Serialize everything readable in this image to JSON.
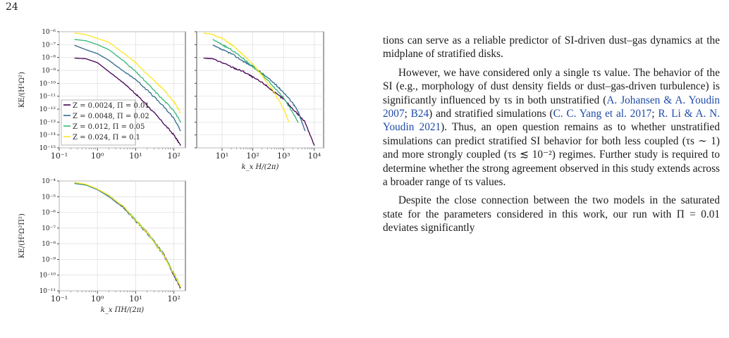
{
  "page_number": "24",
  "chart_data": [
    {
      "type": "line",
      "panel": "top-left",
      "xscale": "log",
      "yscale": "log",
      "xlim": [
        0.1,
        200
      ],
      "ylim": [
        1e-15,
        1e-06
      ],
      "xticks": [
        "10⁻¹",
        "10⁰",
        "10¹",
        "10²"
      ],
      "yticks": [
        "10⁻¹⁵",
        "10⁻¹⁴",
        "10⁻¹³",
        "10⁻¹²",
        "10⁻¹¹",
        "10⁻¹⁰",
        "10⁻⁹",
        "10⁻⁸",
        "10⁻⁷",
        "10⁻⁶"
      ],
      "ylabel": "KE/(H²Ω²)",
      "grid": true,
      "legend": "center-left",
      "series": [
        {
          "name": "Z = 0.0024, Π = 0.01",
          "color": "#440154",
          "x": [
            0.25,
            0.5,
            1,
            2,
            5,
            10,
            20,
            50,
            100,
            150
          ],
          "y": [
            9e-09,
            8e-09,
            4e-09,
            8e-10,
            1e-10,
            1.5e-11,
            2e-12,
            1e-13,
            1e-14,
            1.5e-15
          ]
        },
        {
          "name": "Z = 0.0048, Π = 0.02",
          "color": "#31688e",
          "x": [
            0.25,
            0.5,
            1,
            2,
            5,
            10,
            20,
            50,
            100,
            150
          ],
          "y": [
            9e-08,
            4e-08,
            2e-08,
            6e-09,
            8e-10,
            2e-10,
            3e-11,
            2e-12,
            2e-13,
            2e-14
          ]
        },
        {
          "name": "Z = 0.012, Π = 0.05",
          "color": "#35b779",
          "x": [
            0.25,
            0.5,
            1,
            2,
            5,
            10,
            20,
            50,
            100,
            150
          ],
          "y": [
            2.5e-07,
            2e-07,
            1e-07,
            4e-08,
            5e-09,
            8e-10,
            1e-10,
            6e-12,
            8e-13,
            9e-14
          ]
        },
        {
          "name": "Z = 0.024, Π = 0.1",
          "color": "#fde725",
          "x": [
            0.25,
            0.5,
            1,
            2,
            5,
            10,
            20,
            50,
            100,
            150
          ],
          "y": [
            8e-07,
            6e-07,
            3e-07,
            1.5e-07,
            2e-08,
            4e-09,
            5e-10,
            4e-11,
            4e-12,
            5e-13
          ]
        }
      ]
    },
    {
      "type": "line",
      "panel": "top-right",
      "xscale": "log",
      "yscale": "log",
      "xlim": [
        1.5,
        20000
      ],
      "ylim": [
        1e-15,
        1e-06
      ],
      "xticks": [
        "10¹",
        "10²",
        "10³",
        "10⁴"
      ],
      "xlabel": "k_x H/(2π)",
      "grid": true,
      "series": [
        {
          "name": "Z = 0.0024, Π = 0.01",
          "color": "#440154",
          "x": [
            2.5,
            5,
            10,
            25,
            50,
            100,
            250,
            500,
            1000,
            2500,
            5000,
            10000
          ],
          "y": [
            9e-09,
            8e-09,
            4e-09,
            1.5e-09,
            8e-10,
            3e-10,
            8e-11,
            2e-11,
            6e-12,
            6e-13,
            1e-13,
            1.5e-15
          ]
        },
        {
          "name": "Z = 0.0048, Π = 0.02",
          "color": "#31688e",
          "x": [
            5,
            10,
            20,
            50,
            100,
            200,
            500,
            1000,
            2000,
            3000,
            5000
          ],
          "y": [
            9e-08,
            4e-08,
            2e-08,
            5e-09,
            2e-09,
            6e-10,
            1e-10,
            2e-11,
            3e-12,
            6e-13,
            2e-14
          ]
        },
        {
          "name": "Z = 0.012, Π = 0.05",
          "color": "#35b779",
          "x": [
            5,
            10,
            20,
            50,
            100,
            200,
            500,
            1000,
            2000,
            3000
          ],
          "y": [
            2.5e-07,
            1e-07,
            4e-08,
            8e-09,
            2e-09,
            5e-10,
            5e-11,
            8e-12,
            5e-13,
            9e-14
          ]
        },
        {
          "name": "Z = 0.024, Π = 0.1",
          "color": "#fde725",
          "x": [
            2.5,
            5,
            10,
            20,
            50,
            100,
            200,
            500,
            1000,
            1500
          ],
          "y": [
            8e-07,
            6e-07,
            3e-07,
            1e-07,
            1.5e-08,
            3e-09,
            4e-10,
            2e-11,
            1e-12,
            1e-13
          ]
        }
      ]
    },
    {
      "type": "line",
      "panel": "bottom-left",
      "xscale": "log",
      "yscale": "log",
      "xlim": [
        0.1,
        200
      ],
      "ylim": [
        1e-11,
        0.0001
      ],
      "xticks": [
        "10⁻¹",
        "10⁰",
        "10¹",
        "10²"
      ],
      "yticks": [
        "10⁻¹¹",
        "10⁻¹⁰",
        "10⁻⁹",
        "10⁻⁸",
        "10⁻⁷",
        "10⁻⁶",
        "10⁻⁵",
        "10⁻⁴"
      ],
      "xlabel": "k_x ΠH/(2π)",
      "ylabel": "KE/(H²Ω²Π²)",
      "grid": true,
      "series": [
        {
          "name": "Z = 0.0024, Π = 0.01",
          "color": "#440154",
          "x": [
            0.25,
            0.5,
            1,
            2,
            5,
            10,
            20,
            50,
            100,
            150
          ],
          "y": [
            8e-05,
            6e-05,
            3e-05,
            1.2e-05,
            2e-06,
            3e-07,
            5e-08,
            3e-09,
            1e-10,
            1.5e-11
          ]
        },
        {
          "name": "Z = 0.0048, Π = 0.02",
          "color": "#31688e",
          "x": [
            0.25,
            0.5,
            1,
            2,
            5,
            10,
            20,
            50,
            100,
            150
          ],
          "y": [
            7e-05,
            5.5e-05,
            2.8e-05,
            1e-05,
            1.8e-06,
            2.8e-07,
            4.5e-08,
            2.5e-09,
            1.1e-10,
            1.6e-11
          ]
        },
        {
          "name": "Z = 0.012, Π = 0.05",
          "color": "#35b779",
          "x": [
            0.25,
            0.5,
            1,
            2,
            5,
            10,
            20,
            50,
            100,
            150
          ],
          "y": [
            7.5e-05,
            5.8e-05,
            3e-05,
            1.1e-05,
            2.2e-06,
            3.2e-07,
            5.2e-08,
            2.8e-09,
            1.3e-10,
            1.8e-11
          ]
        },
        {
          "name": "Z = 0.024, Π = 0.1",
          "color": "#fde725",
          "x": [
            0.25,
            0.5,
            1,
            2,
            5,
            10,
            20,
            50,
            100,
            150
          ],
          "y": [
            8e-05,
            6.2e-05,
            3.1e-05,
            1.2e-05,
            2.1e-06,
            3.1e-07,
            5e-08,
            2.6e-09,
            1.2e-10,
            1.7e-11
          ]
        }
      ]
    }
  ],
  "text": {
    "p1": "tions can serve as a reliable predictor of SI-driven dust–gas dynamics at the midplane of stratified disks.",
    "p2": {
      "a": "However, we have considered only a single τs value. The behavior of the SI (e.g., morphology of dust density fields or dust–gas-driven turbulence) is significantly influenced by τs in both unstratified (",
      "c1": "A. Johansen & A. Youdin 2007",
      "s1": "; ",
      "c2": "B24",
      "b": ") and stratified simulations (",
      "c3": "C. C. Yang et al. 2017",
      "s2": "; ",
      "c4": "R. Li & A. N. Youdin 2021",
      "c": "). Thus, an open question remains as to whether unstratified simulations can predict stratified SI behavior for both less coupled (τs ∼ 1) and more strongly coupled (τs ≲ 10⁻²) regimes. Further study is required to determine whether the strong agreement observed in this study extends across a broader range of τs values."
    },
    "p3": "Despite the close connection between the two models in the saturated state for the parameters considered in this work, our run with Π = 0.01 deviates significantly"
  }
}
